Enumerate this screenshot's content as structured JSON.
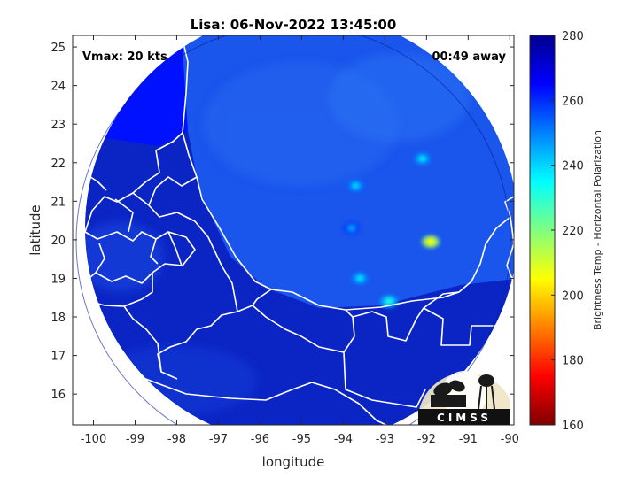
{
  "chart_data": {
    "type": "heatmap",
    "title": "Lisa: 06-Nov-2022 13:45:00",
    "xlabel": "longitude",
    "ylabel": "latitude",
    "xlim": [
      -100.5,
      -89.9
    ],
    "ylim": [
      15.2,
      25.3
    ],
    "xticks": [
      -100,
      -99,
      -98,
      -97,
      -96,
      -95,
      -94,
      -93,
      -92,
      -91,
      -90
    ],
    "yticks": [
      16,
      17,
      18,
      19,
      20,
      21,
      22,
      23,
      24,
      25
    ],
    "colorbar": {
      "label": "Brightness Temp - Horizontal Polarization",
      "min": 160,
      "max": 280,
      "ticks": [
        160,
        180,
        200,
        220,
        240,
        260,
        280
      ],
      "colormap": [
        "#7f0000",
        "#ff0000",
        "#ff8000",
        "#ffff00",
        "#80ff80",
        "#00ffff",
        "#0080ff",
        "#0000ff",
        "#00008f"
      ]
    },
    "annotations": {
      "vmax": "Vmax: 20 kts",
      "time_away": "00:49 away"
    },
    "swath": {
      "center_lon": -95.0,
      "center_lat": 20.3,
      "radius_deg": 5.2
    },
    "background_tb": {
      "land": 263,
      "ocean": 258
    },
    "cold_spots": [
      {
        "lon": -91.9,
        "lat": 19.95,
        "tb": 205
      },
      {
        "lon": -92.1,
        "lat": 22.1,
        "tb": 238
      },
      {
        "lon": -93.7,
        "lat": 21.4,
        "tb": 240
      },
      {
        "lon": -93.6,
        "lat": 19.0,
        "tb": 238
      },
      {
        "lon": -92.9,
        "lat": 18.4,
        "tb": 232
      },
      {
        "lon": -93.8,
        "lat": 20.3,
        "tb": 246
      }
    ],
    "grid": false,
    "legend": "none"
  },
  "logo": {
    "text": "CIMSS"
  }
}
